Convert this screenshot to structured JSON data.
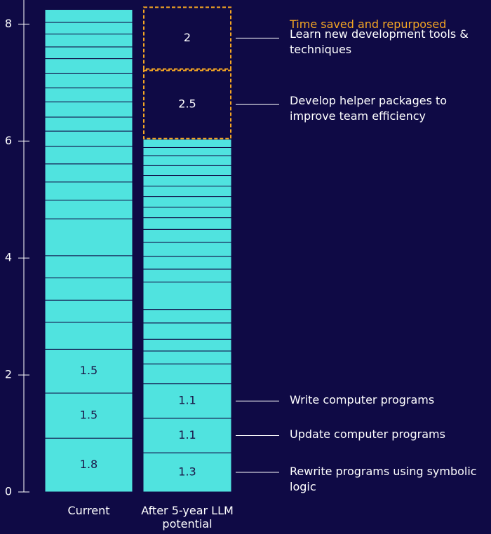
{
  "chart_data": {
    "type": "stacked_bar",
    "legend_title": "Time saved and repurposed",
    "ylim": [
      0,
      8.28
    ],
    "yticks": [
      0,
      2,
      4,
      6,
      8
    ],
    "color": "#50e3df",
    "repurposed_color": "#f5a623",
    "bars": [
      {
        "category": "Current",
        "segments": [
          {
            "value": 0.92,
            "label": "1.8"
          },
          {
            "value": 0.77,
            "label": "1.5"
          },
          {
            "value": 0.75,
            "label": "1.5"
          },
          {
            "value": 0.46
          },
          {
            "value": 0.38
          },
          {
            "value": 0.38
          },
          {
            "value": 0.38
          },
          {
            "value": 0.63
          },
          {
            "value": 0.32
          },
          {
            "value": 0.31
          },
          {
            "value": 0.31
          },
          {
            "value": 0.3
          },
          {
            "value": 0.26
          },
          {
            "value": 0.24
          },
          {
            "value": 0.26
          },
          {
            "value": 0.24
          },
          {
            "value": 0.25
          },
          {
            "value": 0.25
          },
          {
            "value": 0.2
          },
          {
            "value": 0.22
          },
          {
            "value": 0.2
          },
          {
            "value": 0.22
          }
        ]
      },
      {
        "category": "After 5-year LLM potential",
        "segments": [
          {
            "value": 0.67,
            "label": "1.3",
            "note": "Rewrite programs using symbolic logic"
          },
          {
            "value": 0.59,
            "label": "1.1",
            "note": "Update computer programs"
          },
          {
            "value": 0.59,
            "label": "1.1",
            "note": "Write computer programs"
          },
          {
            "value": 0.34
          },
          {
            "value": 0.22
          },
          {
            "value": 0.2
          },
          {
            "value": 0.28
          },
          {
            "value": 0.23
          },
          {
            "value": 0.47
          },
          {
            "value": 0.22
          },
          {
            "value": 0.22
          },
          {
            "value": 0.24
          },
          {
            "value": 0.22
          },
          {
            "value": 0.2
          },
          {
            "value": 0.18
          },
          {
            "value": 0.18
          },
          {
            "value": 0.18
          },
          {
            "value": 0.18
          },
          {
            "value": 0.17
          },
          {
            "value": 0.17
          },
          {
            "value": 0.14
          },
          {
            "value": 0.14
          }
        ],
        "repurposed": [
          {
            "value": 1.19,
            "label": "2.5",
            "note": "Develop helper packages to improve team efficiency"
          },
          {
            "value": 1.08,
            "label": "2",
            "note": "Learn new development tools & techniques"
          }
        ]
      }
    ]
  }
}
